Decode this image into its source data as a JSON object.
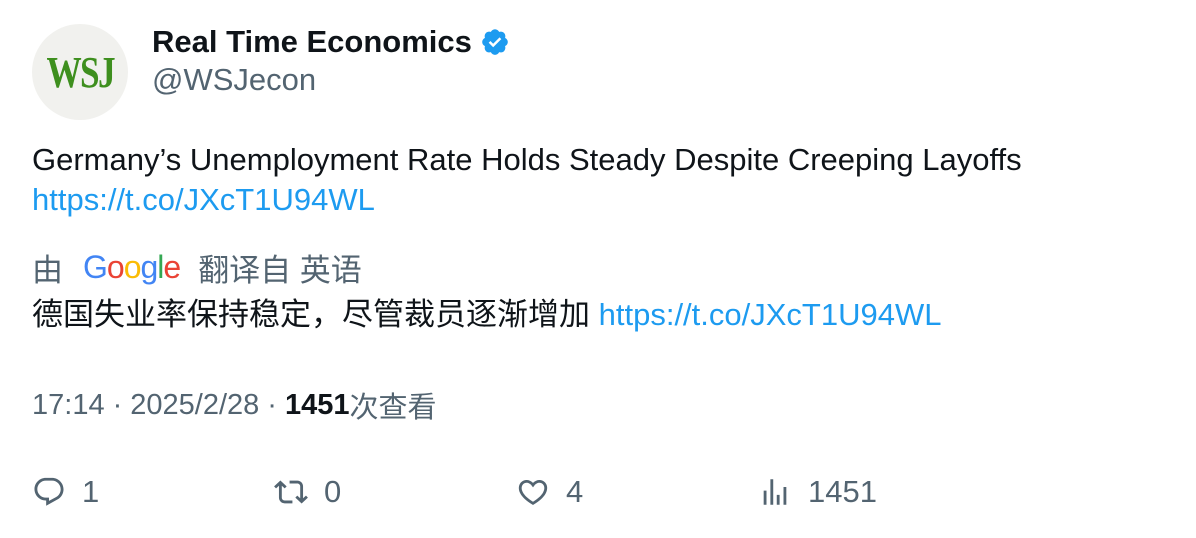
{
  "author": {
    "avatar_text": "WSJ",
    "display_name": "Real Time Economics",
    "handle": "@WSJecon",
    "verified_color": "#1d9bf0"
  },
  "tweet": {
    "text": "Germany’s Unemployment Rate Holds Steady Despite Creeping Layoffs",
    "link": "https://t.co/JXcT1U94WL"
  },
  "translation": {
    "prefix": "由",
    "provider_letters": [
      "G",
      "o",
      "o",
      "g",
      "l",
      "e"
    ],
    "suffix": "翻译自 英语",
    "text": "德国失业率保持稳定，尽管裁员逐渐增加",
    "link": "https://t.co/JXcT1U94WL"
  },
  "meta": {
    "time": "17:14",
    "separator": "·",
    "date": "2025/2/28",
    "views_count": "1451",
    "views_label": "次查看"
  },
  "actions": {
    "reply": {
      "icon": "reply-icon",
      "count": "1"
    },
    "retweet": {
      "icon": "retweet-icon",
      "count": "0"
    },
    "like": {
      "icon": "heart-icon",
      "count": "4"
    },
    "views": {
      "icon": "analytics-icon",
      "count": "1451"
    }
  },
  "colors": {
    "link": "#1d9bf0",
    "secondary_text": "#536471",
    "primary_text": "#0f1419"
  }
}
